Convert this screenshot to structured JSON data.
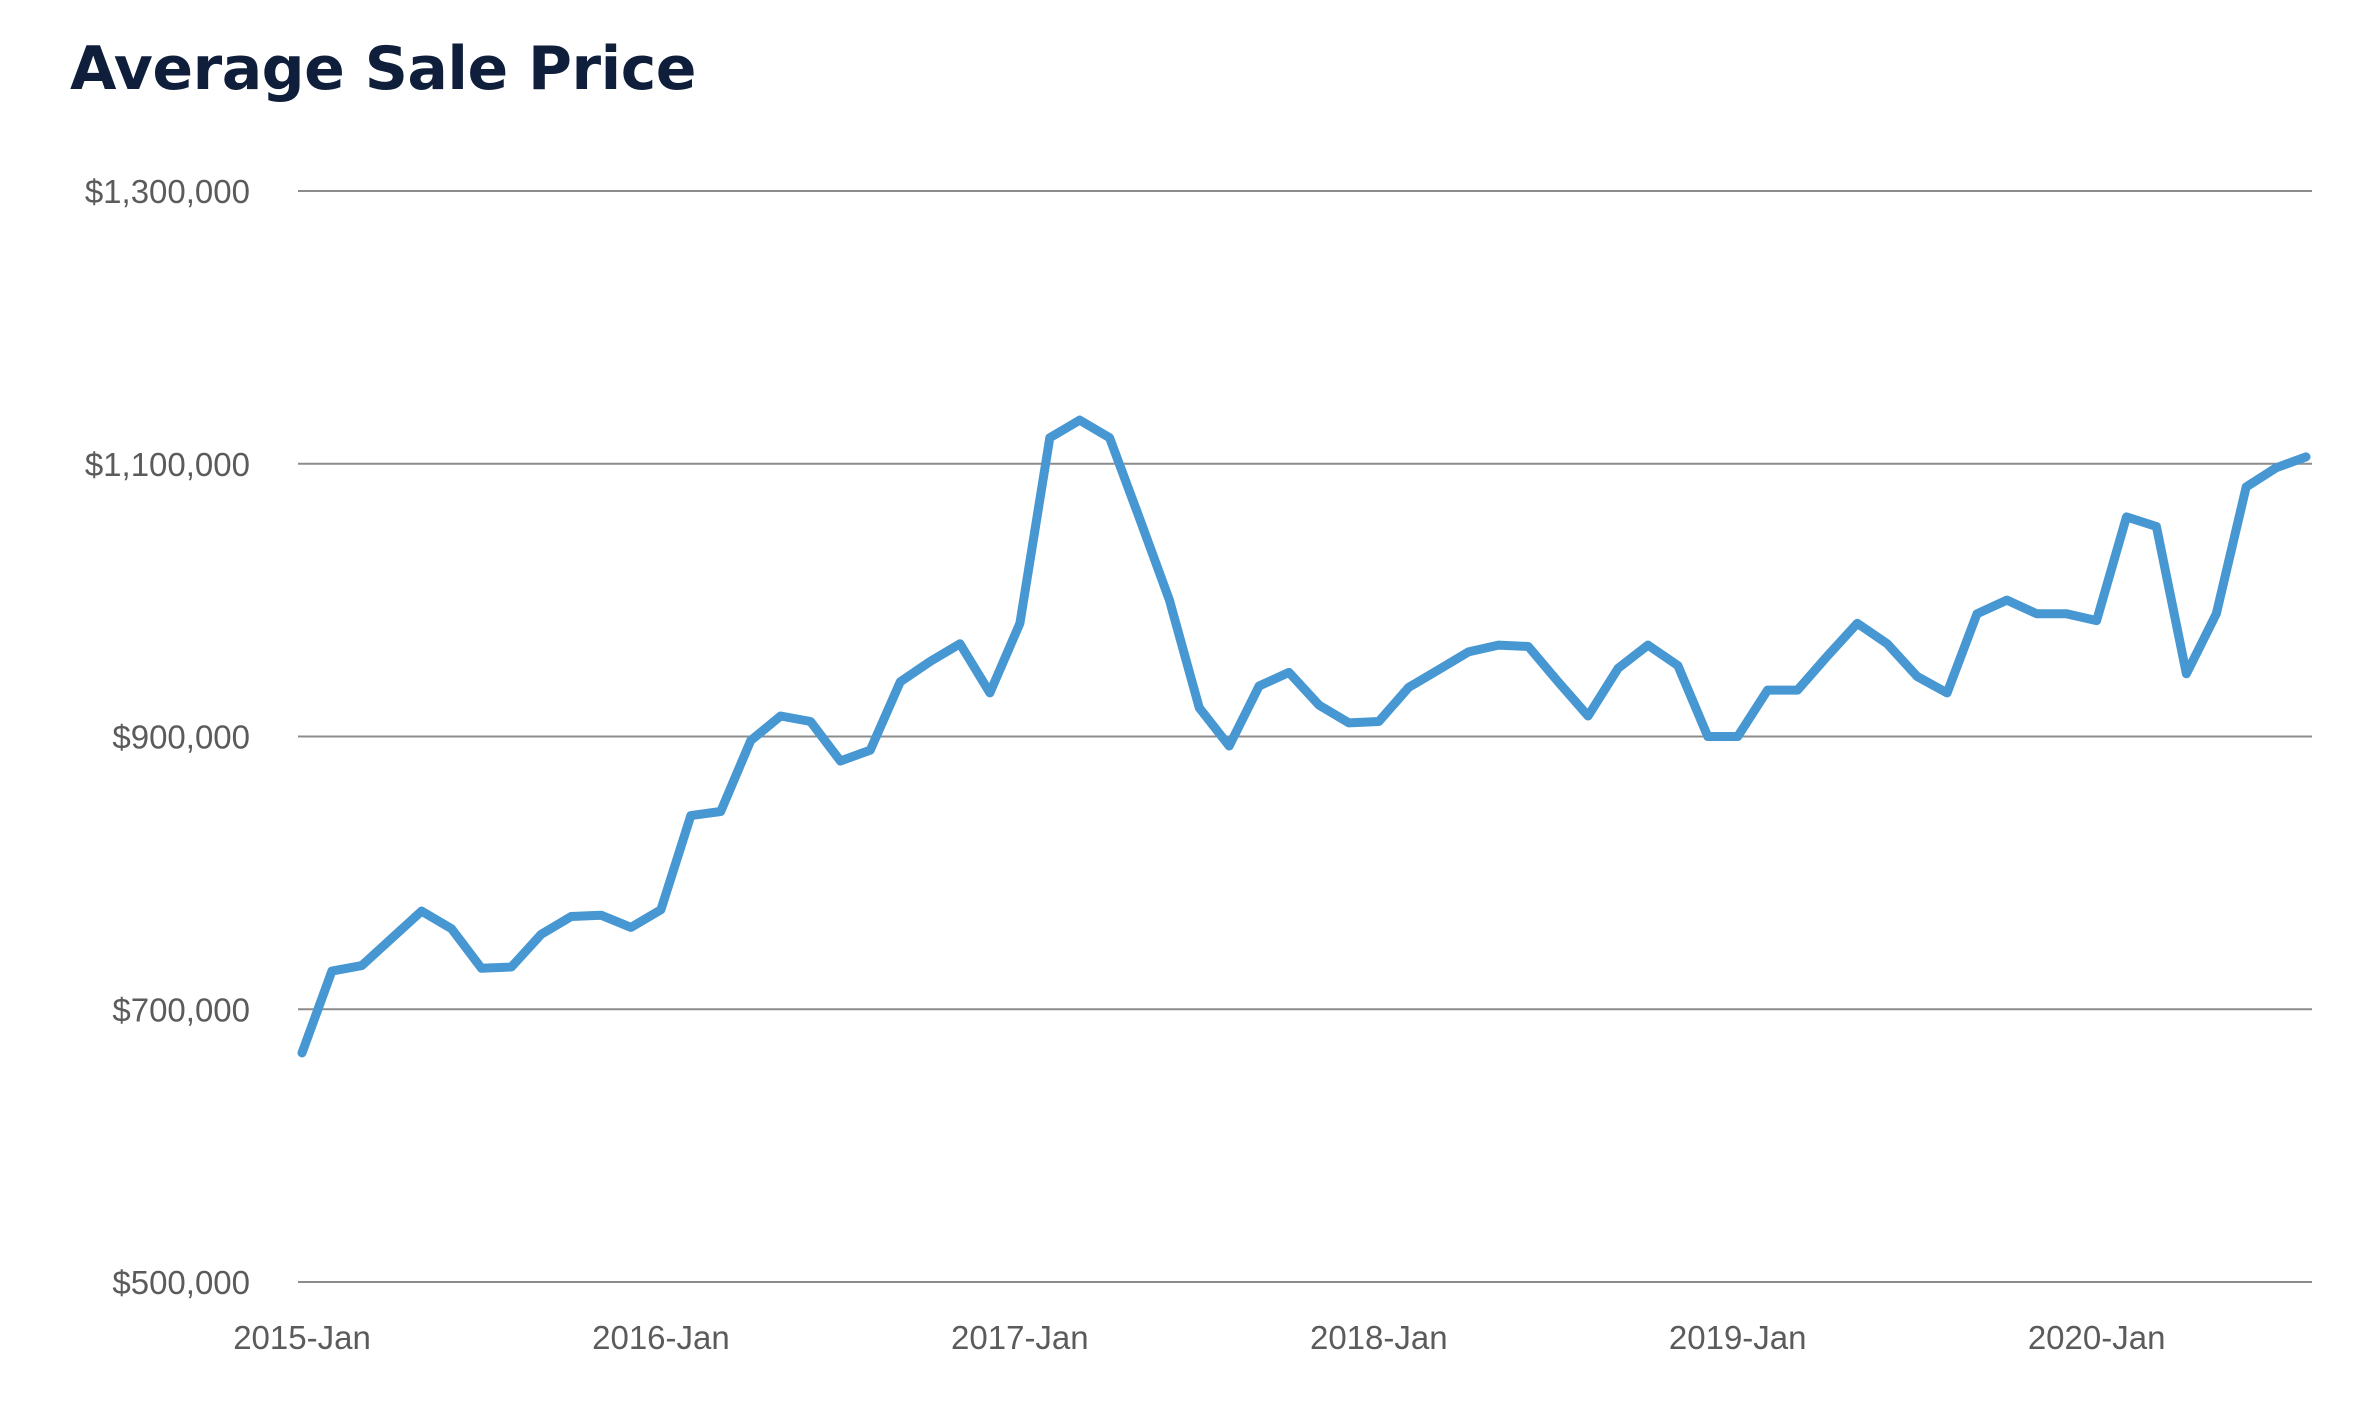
{
  "chart_data": {
    "type": "line",
    "title": "Average Sale Price",
    "xlabel": "",
    "ylabel": "",
    "ylim": [
      500000,
      1300000
    ],
    "y_ticks": [
      {
        "value": 500000,
        "label": "$500,000"
      },
      {
        "value": 700000,
        "label": "$700,000"
      },
      {
        "value": 900000,
        "label": "$900,000"
      },
      {
        "value": 1100000,
        "label": "$1,100,000"
      },
      {
        "value": 1300000,
        "label": "$1,300,000"
      }
    ],
    "x_ticks": [
      {
        "value": "2015-01",
        "label": "2015-Jan"
      },
      {
        "value": "2016-01",
        "label": "2016-Jan"
      },
      {
        "value": "2017-01",
        "label": "2017-Jan"
      },
      {
        "value": "2018-01",
        "label": "2018-Jan"
      },
      {
        "value": "2019-01",
        "label": "2019-Jan"
      },
      {
        "value": "2020-01",
        "label": "2020-Jan"
      }
    ],
    "grid": true,
    "line_color": "#4697d2",
    "x": [
      "2015-01",
      "2015-02",
      "2015-03",
      "2015-04",
      "2015-05",
      "2015-06",
      "2015-07",
      "2015-08",
      "2015-09",
      "2015-10",
      "2015-11",
      "2015-12",
      "2016-01",
      "2016-02",
      "2016-03",
      "2016-04",
      "2016-05",
      "2016-06",
      "2016-07",
      "2016-08",
      "2016-09",
      "2016-10",
      "2016-11",
      "2016-12",
      "2017-01",
      "2017-02",
      "2017-03",
      "2017-04",
      "2017-05",
      "2017-06",
      "2017-07",
      "2017-08",
      "2017-09",
      "2017-10",
      "2017-11",
      "2017-12",
      "2018-01",
      "2018-02",
      "2018-03",
      "2018-04",
      "2018-05",
      "2018-06",
      "2018-07",
      "2018-08",
      "2018-09",
      "2018-10",
      "2018-11",
      "2018-12",
      "2019-01",
      "2019-02",
      "2019-03",
      "2019-04",
      "2019-05",
      "2019-06",
      "2019-07",
      "2019-08",
      "2019-09",
      "2019-10",
      "2019-11",
      "2019-12",
      "2020-01",
      "2020-02",
      "2020-03",
      "2020-04",
      "2020-05",
      "2020-06",
      "2020-07",
      "2020-08"
    ],
    "series": [
      {
        "values": [
          668000,
          728000,
          732000,
          752000,
          772000,
          759000,
          730000,
          731000,
          755000,
          768000,
          769000,
          760000,
          773000,
          842000,
          845000,
          897000,
          915000,
          911000,
          882000,
          890000,
          940000,
          955000,
          968000,
          932000,
          983000,
          1119000,
          1132000,
          1119000,
          1060000,
          1000000,
          921000,
          893000,
          937000,
          947000,
          923000,
          910000,
          911000,
          936000,
          949000,
          962000,
          967000,
          966000,
          940000,
          915000,
          950000,
          967000,
          952000,
          900000,
          900000,
          934000,
          934000,
          959000,
          983000,
          968000,
          944000,
          932000,
          990000,
          1000000,
          990000,
          990000,
          985000,
          1061000,
          1054000,
          946000,
          990000,
          1083000,
          1097000,
          1105000
        ]
      }
    ]
  }
}
